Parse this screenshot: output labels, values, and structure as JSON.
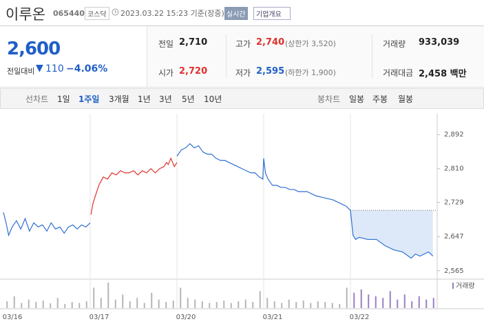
{
  "header": {
    "name": "이루온",
    "code": "065440",
    "market": "코스닥",
    "time": "2023.03.22 15:23 기준(장중)",
    "realtime": "실시간",
    "company": "기업개요"
  },
  "quote": {
    "price": "2,600",
    "change_label": "전일대비",
    "change": "110",
    "change_pct": "−4.06%",
    "rows": [
      [
        {
          "label": "전일",
          "value": "2,710"
        },
        {
          "label": "고가",
          "value": "2,740",
          "note": "(상한가 3,520)"
        },
        {
          "label": "거래량",
          "value": "933,039"
        }
      ],
      [
        {
          "label": "시가",
          "value": "2,720"
        },
        {
          "label": "저가",
          "value": "2,595",
          "note": "(하한가 1,900)"
        },
        {
          "label": "거래대금",
          "value": "2,458 백만"
        }
      ]
    ]
  },
  "tabs": {
    "line": {
      "label": "선차트",
      "items": [
        "1일",
        "1주일",
        "3개월",
        "1년",
        "3년",
        "5년",
        "10년"
      ],
      "active": 1
    },
    "candle": {
      "label": "봉차트",
      "items": [
        "일봉",
        "주봉",
        "월봉"
      ]
    }
  },
  "chart_data": {
    "type": "line",
    "xlim": [
      0,
      5
    ],
    "ylim": [
      2553,
      2942
    ],
    "xticks": [
      {
        "value": 0,
        "label": "03/16"
      },
      {
        "value": 1,
        "label": "03/17"
      },
      {
        "value": 2,
        "label": "03/20"
      },
      {
        "value": 3,
        "label": "03/21"
      },
      {
        "value": 4,
        "label": "03/22"
      }
    ],
    "yticks": [
      {
        "value": 2892,
        "label": "2,892"
      },
      {
        "value": 2810,
        "label": "2,810"
      },
      {
        "value": 2729,
        "label": "2,729"
      },
      {
        "value": 2647,
        "label": "2,647"
      },
      {
        "value": 2565,
        "label": "2,565"
      }
    ],
    "ref_value": 2710,
    "ref_from": 4,
    "fill_color": "#dde9f8",
    "series": [
      {
        "color": "#2f6fd0",
        "x": [
          0,
          0.03,
          0.06,
          0.1,
          0.15,
          0.2,
          0.25,
          0.3,
          0.35,
          0.4,
          0.45,
          0.5,
          0.55,
          0.6,
          0.65,
          0.7,
          0.75,
          0.8,
          0.85,
          0.9,
          0.95,
          1.0
        ],
        "values": [
          2705,
          2680,
          2650,
          2670,
          2685,
          2665,
          2690,
          2660,
          2680,
          2670,
          2675,
          2660,
          2680,
          2665,
          2670,
          2655,
          2670,
          2675,
          2665,
          2675,
          2670,
          2680
        ]
      },
      {
        "color": "#e0322d",
        "x": [
          1.01,
          1.03,
          1.06,
          1.1,
          1.15,
          1.2,
          1.25,
          1.3,
          1.35,
          1.4,
          1.45,
          1.5,
          1.55,
          1.6,
          1.65,
          1.7,
          1.75,
          1.8,
          1.85,
          1.88,
          1.9,
          1.93,
          1.97,
          2.0
        ],
        "values": [
          2700,
          2725,
          2745,
          2770,
          2790,
          2785,
          2800,
          2795,
          2805,
          2800,
          2800,
          2805,
          2795,
          2805,
          2800,
          2810,
          2800,
          2810,
          2815,
          2825,
          2820,
          2835,
          2815,
          2825
        ]
      },
      {
        "color": "#2f6fd0",
        "x": [
          2.0,
          2.05,
          2.1,
          2.15,
          2.2,
          2.25,
          2.3,
          2.35,
          2.4,
          2.45,
          2.5,
          2.55,
          2.6,
          2.65,
          2.7,
          2.75,
          2.8,
          2.85,
          2.9,
          2.95,
          2.99,
          3.0,
          3.02,
          3.05,
          3.1,
          3.15,
          3.2,
          3.25,
          3.3,
          3.35,
          3.4,
          3.5,
          3.6,
          3.7,
          3.8,
          3.85,
          3.9,
          3.95,
          4.0,
          4.03,
          4.06,
          4.1,
          4.2,
          4.3,
          4.4,
          4.5,
          4.6,
          4.7,
          4.75,
          4.8,
          4.9,
          4.95
        ],
        "values": [
          2840,
          2855,
          2860,
          2870,
          2860,
          2865,
          2850,
          2845,
          2845,
          2835,
          2830,
          2830,
          2825,
          2820,
          2815,
          2810,
          2805,
          2800,
          2800,
          2790,
          2785,
          2835,
          2800,
          2785,
          2770,
          2770,
          2765,
          2765,
          2760,
          2760,
          2755,
          2755,
          2745,
          2740,
          2735,
          2730,
          2725,
          2720,
          2710,
          2650,
          2640,
          2645,
          2640,
          2640,
          2625,
          2615,
          2610,
          2595,
          2605,
          2600,
          2610,
          2600
        ]
      }
    ],
    "volume": {
      "label": "거래량",
      "color": "#b5b5b5",
      "today_color": "#9a7fc4",
      "today_from": 4,
      "values": [
        20,
        35,
        15,
        25,
        18,
        22,
        14,
        30,
        12,
        18,
        15,
        20,
        60,
        30,
        75,
        25,
        40,
        20,
        30,
        15,
        45,
        25,
        18,
        22,
        60,
        30,
        25,
        20,
        15,
        18,
        22,
        15,
        20,
        25,
        18,
        50,
        30,
        20,
        15,
        25,
        18,
        22,
        15,
        20,
        18,
        15,
        12,
        60,
        45,
        55,
        40,
        35,
        30,
        50,
        25,
        40,
        20,
        35,
        25,
        30
      ]
    }
  }
}
